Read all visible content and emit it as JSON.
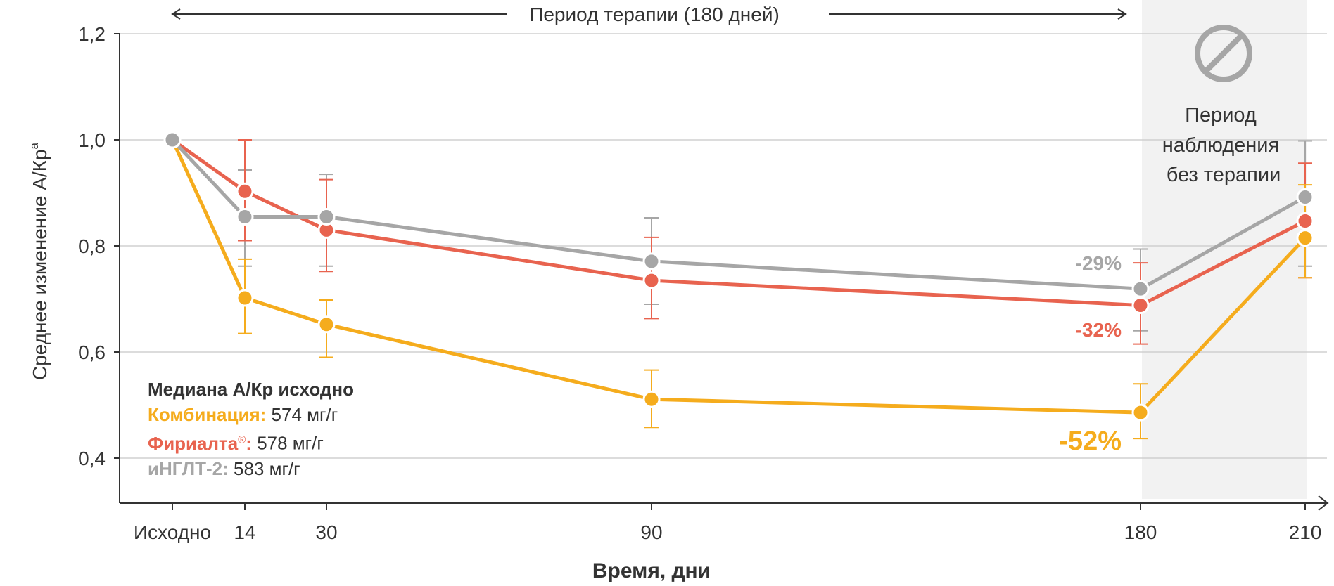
{
  "chart_data": {
    "type": "line",
    "title": "",
    "xlabel": "Время, дни",
    "ylabel": "Среднее изменение А/Кр",
    "ylabel_sup": "a",
    "x": [
      0,
      14,
      30,
      90,
      180,
      210
    ],
    "x_tick_labels": [
      "Исходно",
      "14",
      "30",
      "90",
      "180",
      "210"
    ],
    "ylim": [
      0.3,
      1.2
    ],
    "y_ticks": [
      "0,4",
      "0,6",
      "0,8",
      "1,0",
      "1,2"
    ],
    "y_tick_values": [
      0.4,
      0.6,
      0.8,
      1.0,
      1.2
    ],
    "grid": true,
    "therapy_period_label": "Период терапии (180 дней)",
    "observation_label": [
      "Период",
      "наблюдения",
      "без терапии"
    ],
    "series": [
      {
        "name": "иНГЛТ-2",
        "color": "#a6a6a6",
        "values": [
          1.0,
          0.855,
          0.855,
          0.771,
          0.719,
          0.892
        ],
        "err_low": [
          null,
          0.762,
          0.762,
          0.69,
          0.64,
          0.762
        ],
        "err_high": [
          null,
          0.943,
          0.935,
          0.853,
          0.794,
          0.998
        ],
        "annotation": "-29%"
      },
      {
        "name": "Фириалта",
        "color": "#e8634f",
        "values": [
          1.0,
          0.903,
          0.83,
          0.735,
          0.688,
          0.847
        ],
        "err_low": [
          null,
          0.81,
          0.752,
          0.663,
          0.615,
          0.74
        ],
        "err_high": [
          null,
          1.0,
          0.925,
          0.816,
          0.768,
          0.956
        ],
        "annotation": "-32%"
      },
      {
        "name": "Комбинация",
        "color": "#f5ac1d",
        "values": [
          1.0,
          0.702,
          0.652,
          0.511,
          0.486,
          0.815
        ],
        "err_low": [
          null,
          0.635,
          0.59,
          0.458,
          0.437,
          0.74
        ],
        "err_high": [
          null,
          0.775,
          0.698,
          0.566,
          0.54,
          0.915
        ],
        "annotation": "-52%"
      }
    ]
  },
  "legend": {
    "title": "Медиана А/Кр исходно",
    "items": [
      {
        "name": "Комбинация:",
        "value": "574 мг/г",
        "color": "#f5ac1d",
        "sup": ""
      },
      {
        "name": "Фириалта",
        "value": "578 мг/г",
        "color": "#e8634f",
        "sup": "®"
      },
      {
        "name": "иНГЛТ-2:",
        "value": "583 мг/г",
        "color": "#a6a6a6",
        "sup": ""
      }
    ]
  },
  "legend_colon": ":"
}
